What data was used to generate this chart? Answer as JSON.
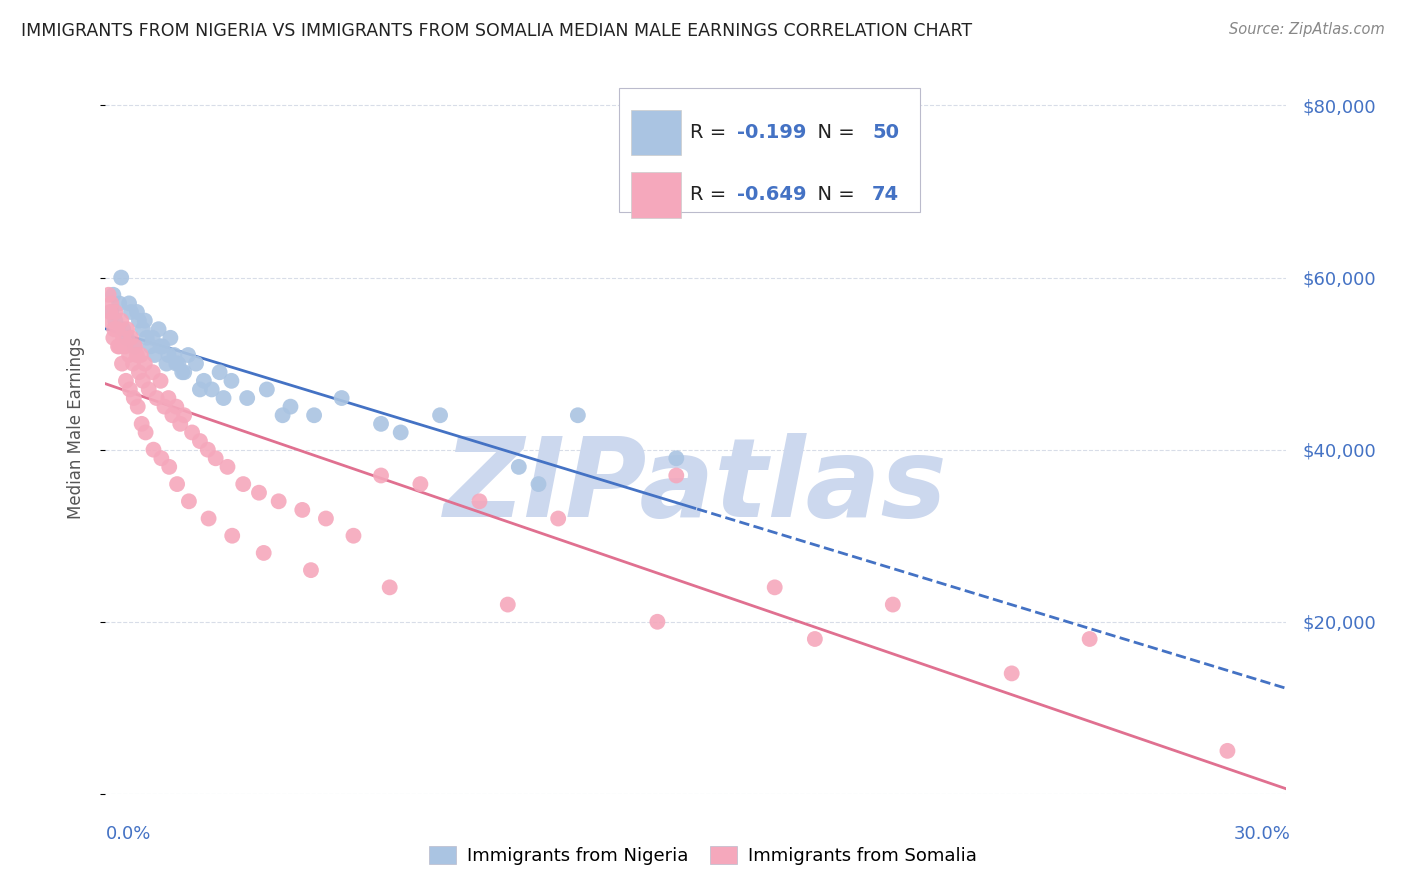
{
  "title": "IMMIGRANTS FROM NIGERIA VS IMMIGRANTS FROM SOMALIA MEDIAN MALE EARNINGS CORRELATION CHART",
  "source": "Source: ZipAtlas.com",
  "ylabel": "Median Male Earnings",
  "x_range": [
    0.0,
    30.0
  ],
  "y_range": [
    0,
    85000
  ],
  "nigeria_R": -0.199,
  "nigeria_N": 50,
  "somalia_R": -0.649,
  "somalia_N": 74,
  "nigeria_color": "#aac4e2",
  "somalia_color": "#f5a8bc",
  "nigeria_line_color": "#4472c4",
  "somalia_line_color": "#e07090",
  "axis_color": "#4472c4",
  "watermark_color": "#ccd8ee",
  "grid_color": "#d8dde8",
  "nigeria_x": [
    0.15,
    0.25,
    0.35,
    0.45,
    0.55,
    0.65,
    0.75,
    0.85,
    0.95,
    1.05,
    1.15,
    1.25,
    1.35,
    1.45,
    1.55,
    1.65,
    1.75,
    1.85,
    1.95,
    2.1,
    2.3,
    2.5,
    2.7,
    2.9,
    3.2,
    3.6,
    4.1,
    4.7,
    5.3,
    6.0,
    7.0,
    8.5,
    10.5,
    12.0,
    14.5,
    0.2,
    0.4,
    0.6,
    0.8,
    1.0,
    1.2,
    1.4,
    1.6,
    1.8,
    2.0,
    2.4,
    3.0,
    4.5,
    7.5,
    11.0
  ],
  "nigeria_y": [
    56000,
    55000,
    57000,
    54000,
    53000,
    56000,
    52000,
    55000,
    54000,
    53000,
    52000,
    51000,
    54000,
    52000,
    50000,
    53000,
    51000,
    50000,
    49000,
    51000,
    50000,
    48000,
    47000,
    49000,
    48000,
    46000,
    47000,
    45000,
    44000,
    46000,
    43000,
    44000,
    38000,
    44000,
    39000,
    58000,
    60000,
    57000,
    56000,
    55000,
    53000,
    52000,
    51000,
    50000,
    49000,
    47000,
    46000,
    44000,
    42000,
    36000
  ],
  "somalia_x": [
    0.1,
    0.15,
    0.2,
    0.25,
    0.3,
    0.35,
    0.4,
    0.45,
    0.5,
    0.55,
    0.6,
    0.65,
    0.7,
    0.75,
    0.8,
    0.85,
    0.9,
    0.95,
    1.0,
    1.1,
    1.2,
    1.3,
    1.4,
    1.5,
    1.6,
    1.7,
    1.8,
    1.9,
    2.0,
    2.2,
    2.4,
    2.6,
    2.8,
    3.1,
    3.5,
    3.9,
    4.4,
    5.0,
    5.6,
    6.3,
    7.0,
    8.0,
    9.5,
    11.5,
    14.5,
    17.0,
    20.0,
    25.0,
    28.5,
    0.12,
    0.22,
    0.32,
    0.42,
    0.52,
    0.62,
    0.72,
    0.82,
    0.92,
    1.02,
    1.22,
    1.42,
    1.62,
    1.82,
    2.12,
    2.62,
    3.22,
    4.02,
    5.22,
    7.22,
    10.22,
    14.02,
    18.02,
    23.02,
    0.08
  ],
  "somalia_y": [
    55000,
    57000,
    53000,
    56000,
    54000,
    52000,
    55000,
    53000,
    52000,
    54000,
    51000,
    53000,
    50000,
    52000,
    51000,
    49000,
    51000,
    48000,
    50000,
    47000,
    49000,
    46000,
    48000,
    45000,
    46000,
    44000,
    45000,
    43000,
    44000,
    42000,
    41000,
    40000,
    39000,
    38000,
    36000,
    35000,
    34000,
    33000,
    32000,
    30000,
    37000,
    36000,
    34000,
    32000,
    37000,
    24000,
    22000,
    18000,
    5000,
    56000,
    54000,
    52000,
    50000,
    48000,
    47000,
    46000,
    45000,
    43000,
    42000,
    40000,
    39000,
    38000,
    36000,
    34000,
    32000,
    30000,
    28000,
    26000,
    24000,
    22000,
    20000,
    18000,
    14000,
    58000
  ]
}
